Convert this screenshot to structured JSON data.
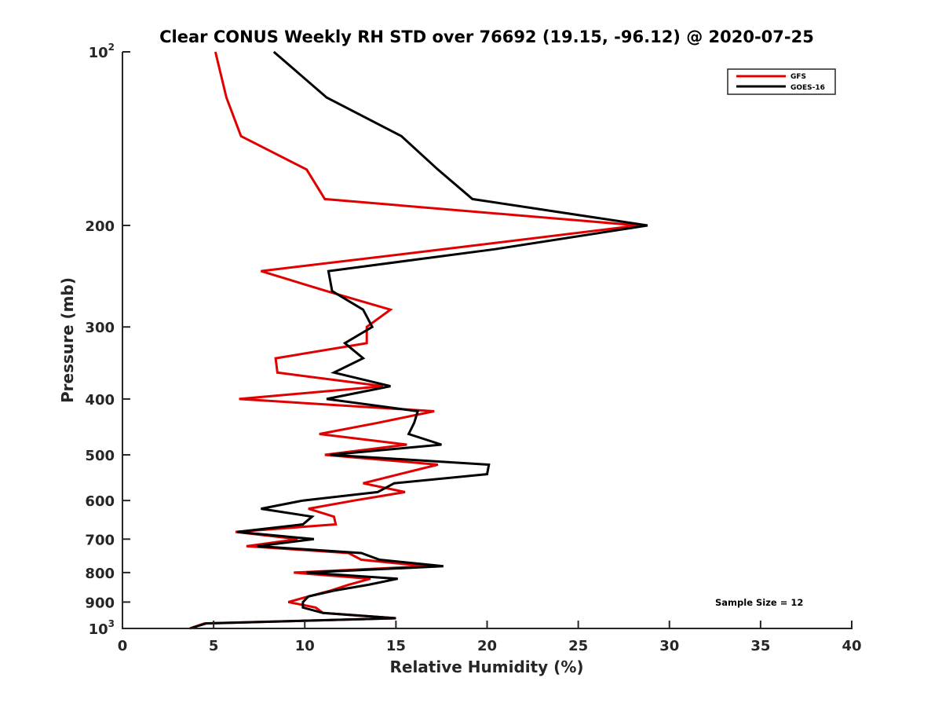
{
  "chart_data": {
    "type": "line",
    "orientation": "vertical-profile",
    "title": "Clear CONUS Weekly RH STD over 76692 (19.15, -96.12) @ 2020-07-25",
    "xlabel": "Relative Humidity (%)",
    "ylabel": "Pressure (mb)",
    "xlim": [
      0,
      40
    ],
    "ylim": [
      100,
      1000
    ],
    "yscale": "log",
    "yreversed": true,
    "grid": false,
    "x_ticks": [
      0,
      5,
      10,
      15,
      20,
      25,
      30,
      35,
      40
    ],
    "x_tick_labels": [
      "0",
      "5",
      "10",
      "15",
      "20",
      "25",
      "30",
      "35",
      "40"
    ],
    "y_ticks": [
      100,
      200,
      300,
      400,
      500,
      600,
      700,
      800,
      900,
      1000
    ],
    "y_tick_labels": [
      {
        "base": "10",
        "sup": "2"
      },
      {
        "base": "200",
        "sup": ""
      },
      {
        "base": "300",
        "sup": ""
      },
      {
        "base": "400",
        "sup": ""
      },
      {
        "base": "500",
        "sup": ""
      },
      {
        "base": "600",
        "sup": ""
      },
      {
        "base": "700",
        "sup": ""
      },
      {
        "base": "800",
        "sup": ""
      },
      {
        "base": "900",
        "sup": ""
      },
      {
        "base": "10",
        "sup": "3"
      }
    ],
    "pressure_levels": [
      100,
      120,
      140,
      160,
      180,
      200,
      220,
      240,
      260,
      280,
      300,
      320,
      340,
      360,
      380,
      400,
      420,
      440,
      460,
      480,
      500,
      520,
      540,
      560,
      580,
      600,
      620,
      640,
      660,
      680,
      700,
      720,
      740,
      760,
      780,
      800,
      820,
      840,
      860,
      880,
      900,
      920,
      940,
      960,
      980,
      1000
    ],
    "series": [
      {
        "name": "GFS",
        "color": "#e00000",
        "values": [
          5.1,
          5.7,
          6.5,
          10.1,
          11.1,
          28.3,
          17.6,
          7.6,
          11.2,
          14.7,
          13.4,
          13.4,
          8.4,
          8.5,
          14.3,
          6.4,
          17.1,
          14.0,
          10.8,
          15.6,
          11.1,
          17.3,
          15.2,
          13.2,
          15.5,
          12.7,
          10.2,
          11.6,
          11.7,
          6.2,
          9.6,
          6.8,
          12.4,
          13.1,
          16.7,
          9.4,
          13.6,
          12.4,
          11.4,
          10.2,
          9.1,
          10.6,
          11.0,
          15.0,
          4.5,
          3.7
        ]
      },
      {
        "name": "GOES-16",
        "color": "#000000",
        "values": [
          8.3,
          11.2,
          15.3,
          17.3,
          19.2,
          28.8,
          20.4,
          11.3,
          11.5,
          13.2,
          13.7,
          12.2,
          13.2,
          11.6,
          14.7,
          11.2,
          16.2,
          16.0,
          15.7,
          17.5,
          11.4,
          20.1,
          20.0,
          14.9,
          14.0,
          9.9,
          7.6,
          10.4,
          9.9,
          6.3,
          10.5,
          7.4,
          13.1,
          14.1,
          17.6,
          10.1,
          15.1,
          13.5,
          11.6,
          10.2,
          9.9,
          9.9,
          11.0,
          15.0,
          4.6,
          3.7
        ]
      }
    ],
    "legend": {
      "placement": "top-right",
      "entries": [
        "GFS",
        "GOES-16"
      ]
    },
    "annotations": [
      "Sample Size = 12"
    ]
  }
}
